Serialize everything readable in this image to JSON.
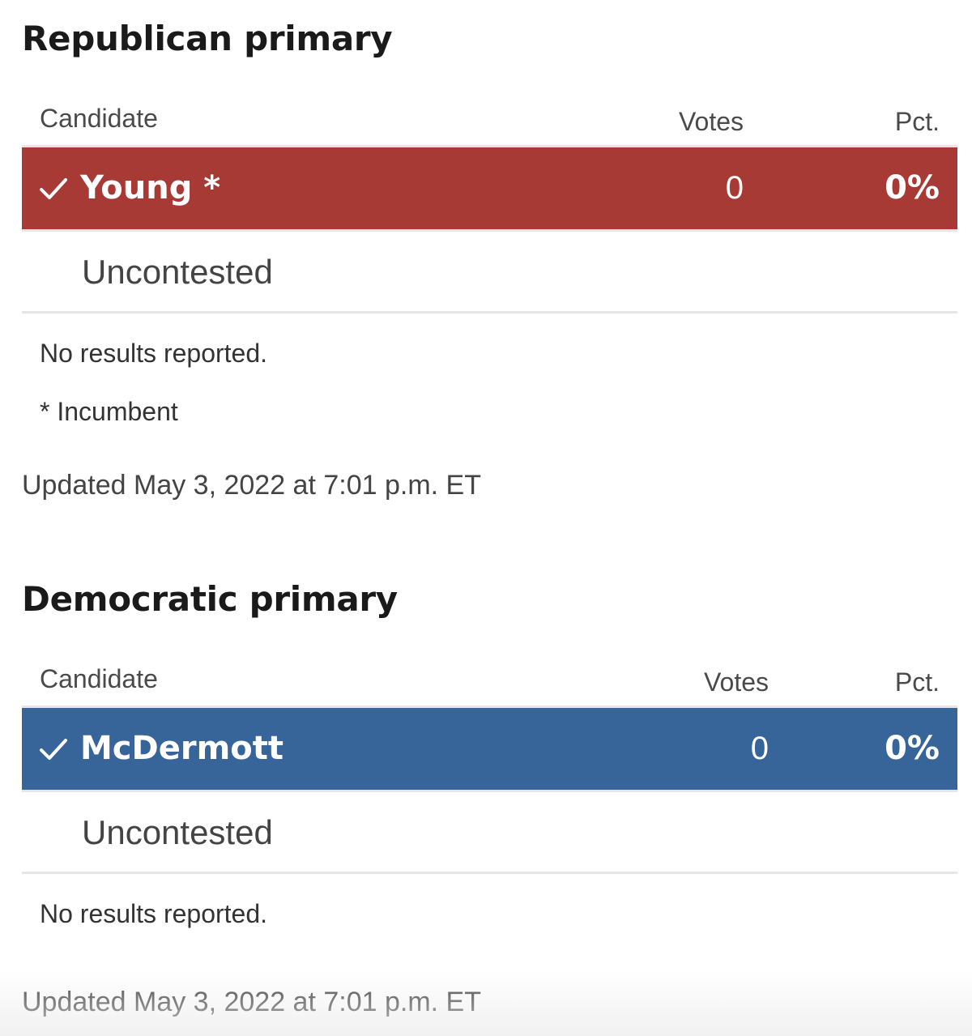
{
  "races": {
    "republican": {
      "title": "Republican primary",
      "headers": {
        "candidate": "Candidate",
        "votes": "Votes",
        "pct": "Pct."
      },
      "winner": {
        "name": "Young *",
        "votes": "0",
        "pct": "0%",
        "color": "#a83a35"
      },
      "status": "Uncontested",
      "results_note": "No results reported.",
      "incumbent_note": "* Incumbent",
      "updated": "Updated May 3, 2022 at 7:01 p.m. ET"
    },
    "democratic": {
      "title": "Democratic primary",
      "headers": {
        "candidate": "Candidate",
        "votes": "Votes",
        "pct": "Pct."
      },
      "winner": {
        "name": "McDermott",
        "votes": "0",
        "pct": "0%",
        "color": "#376599"
      },
      "status": "Uncontested",
      "results_note": "No results reported.",
      "updated": "Updated May 3, 2022 at 7:01 p.m. ET"
    }
  },
  "icons": {
    "winner_mark": "checkmark-icon"
  }
}
